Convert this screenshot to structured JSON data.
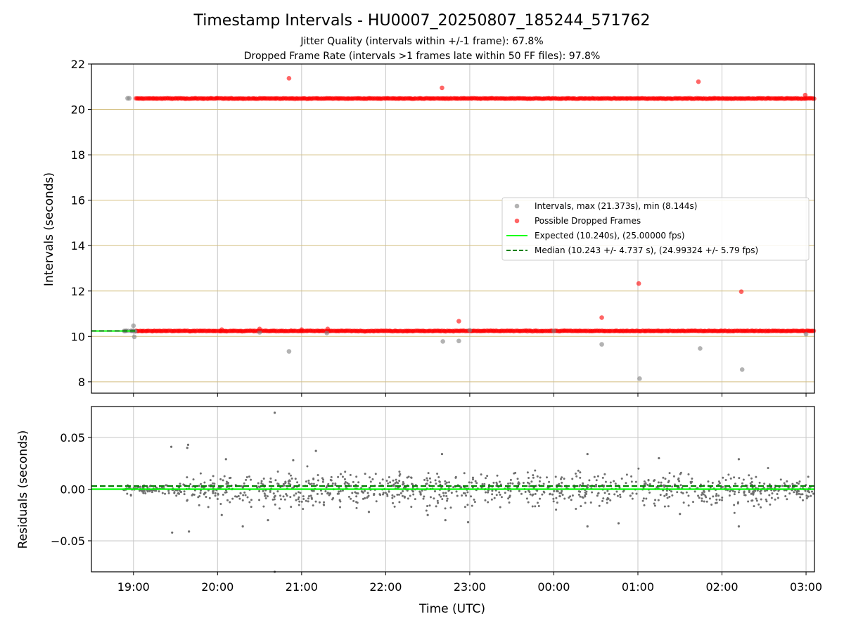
{
  "chart_data": [
    {
      "type": "scatter",
      "title": "Timestamp Intervals - HU0007_20250807_185244_571762",
      "subtitle_lines": [
        "Jitter Quality (intervals within +/-1 frame): 67.8%",
        "Dropped Frame Rate (intervals >1 frames late within 50 FF files): 97.8%"
      ],
      "xlabel": "",
      "ylabel": "Intervals (seconds)",
      "xlim_hours_utc": [
        18.5,
        27.1
      ],
      "ylim": [
        7.5,
        22
      ],
      "yticks": [
        8,
        10,
        12,
        14,
        16,
        18,
        20,
        22
      ],
      "grid": true,
      "legend_position": "center-right",
      "legend": [
        "Intervals, max (21.373s), min (8.144s)",
        "Possible Dropped Frames",
        "Expected (10.240s), (25.00000 fps)",
        "Median (10.243 +/- 4.737 s), (24.99324 +/- 5.79 fps)"
      ],
      "series": [
        {
          "name": "Intervals, max (21.373s), min (8.144s)",
          "color": "#808080",
          "points": [
            [
              18.89,
              10.24
            ],
            [
              18.93,
              20.49
            ],
            [
              18.95,
              20.49
            ],
            [
              19.0,
              10.47
            ],
            [
              19.01,
              9.98
            ],
            [
              19.02,
              10.22
            ],
            [
              20.85,
              9.34
            ],
            [
              22.68,
              9.78
            ],
            [
              22.87,
              9.8
            ],
            [
              24.57,
              9.65
            ],
            [
              25.02,
              8.14
            ],
            [
              25.74,
              9.47
            ],
            [
              26.24,
              8.54
            ],
            [
              27.0,
              10.1
            ],
            [
              20.5,
              10.18
            ],
            [
              21.3,
              10.15
            ],
            [
              23.0,
              10.27
            ],
            [
              24.0,
              10.24
            ]
          ]
        },
        {
          "name": "Possible Dropped Frames",
          "color": "#ff0000",
          "points": [
            [
              20.85,
              21.37
            ],
            [
              22.67,
              20.95
            ],
            [
              25.72,
              21.22
            ],
            [
              26.99,
              20.63
            ],
            [
              22.87,
              10.67
            ],
            [
              24.57,
              10.83
            ],
            [
              25.01,
              12.33
            ],
            [
              26.23,
              11.97
            ],
            [
              20.5,
              10.33
            ],
            [
              21.0,
              10.3
            ],
            [
              21.31,
              10.33
            ],
            [
              20.05,
              10.3
            ]
          ],
          "bands": [
            {
              "y": 20.48,
              "x_range": [
                19.02,
                27.1
              ]
            },
            {
              "y": 10.24,
              "x_range": [
                19.02,
                27.1
              ]
            }
          ]
        },
        {
          "name": "Expected (10.240s), (25.00000 fps)",
          "color": "#00ff00",
          "line_y": 10.24
        },
        {
          "name": "Median (10.243 +/- 4.737 s), (24.99324 +/- 5.79 fps)",
          "color": "#008000",
          "line_y": 10.243
        }
      ]
    },
    {
      "type": "scatter",
      "title": "",
      "xlabel": "Time (UTC)",
      "ylabel": "Residuals (seconds)",
      "xlim_hours_utc": [
        18.5,
        27.1
      ],
      "ylim": [
        -0.08,
        0.08
      ],
      "yticks": [
        -0.05,
        0.0,
        0.05
      ],
      "ytick_labels": [
        "−0.05",
        "0.00",
        "0.05"
      ],
      "xticks": [
        19,
        20,
        21,
        22,
        23,
        24,
        25,
        26,
        27
      ],
      "xtick_labels": [
        "19:00",
        "20:00",
        "21:00",
        "22:00",
        "23:00",
        "00:00",
        "01:00",
        "02:00",
        "03:00"
      ],
      "grid": true,
      "series": [
        {
          "name": "",
          "color": "#6e6e6e",
          "points": [
            [
              20.68,
              0.074
            ],
            [
              19.45,
              0.041
            ],
            [
              19.65,
              0.043
            ],
            [
              19.64,
              0.04
            ],
            [
              20.1,
              0.029
            ],
            [
              20.9,
              0.028
            ],
            [
              21.17,
              0.037
            ],
            [
              22.67,
              0.034
            ],
            [
              24.4,
              0.034
            ],
            [
              25.25,
              0.03
            ],
            [
              26.2,
              0.029
            ],
            [
              19.46,
              -0.042
            ],
            [
              19.66,
              -0.041
            ],
            [
              20.3,
              -0.036
            ],
            [
              20.6,
              -0.03
            ],
            [
              20.68,
              -0.08
            ],
            [
              22.5,
              -0.025
            ],
            [
              22.71,
              -0.03
            ],
            [
              22.98,
              -0.032
            ],
            [
              24.4,
              -0.036
            ],
            [
              24.77,
              -0.033
            ],
            [
              26.2,
              -0.036
            ],
            [
              20.05,
              -0.025
            ],
            [
              21.8,
              -0.022
            ],
            [
              25.5,
              -0.024
            ]
          ]
        },
        {
          "name": "",
          "color": "#00ff00",
          "line_y": 0.0
        },
        {
          "name": "",
          "color": "#008000",
          "line_y": 0.003
        }
      ]
    }
  ]
}
